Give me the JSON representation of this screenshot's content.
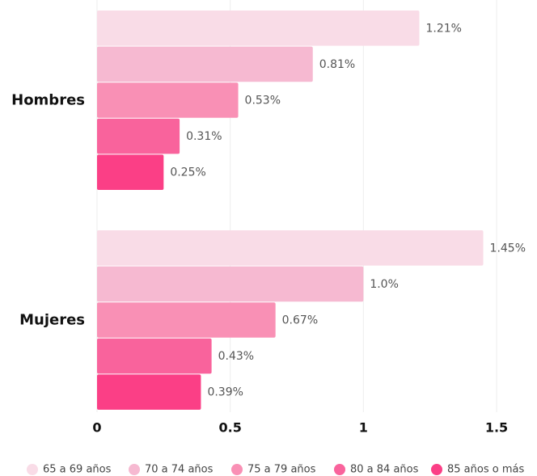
{
  "chart_data": {
    "type": "bar",
    "orientation": "horizontal",
    "categories": [
      "Hombres",
      "Mujeres"
    ],
    "series": [
      {
        "name": "65 a 69 años",
        "color": "#f9dce7",
        "values": [
          1.21,
          1.45
        ],
        "value_labels": [
          "1.21%",
          "1.45%"
        ]
      },
      {
        "name": "70 a 74 años",
        "color": "#f6b9d1",
        "values": [
          0.81,
          1.0
        ],
        "value_labels": [
          "0.81%",
          "1.0%"
        ]
      },
      {
        "name": "75 a 79 años",
        "color": "#f990b5",
        "values": [
          0.53,
          0.67
        ],
        "value_labels": [
          "0.53%",
          "0.67%"
        ]
      },
      {
        "name": "80 a 84 años",
        "color": "#f9639c",
        "values": [
          0.31,
          0.43
        ],
        "value_labels": [
          "0.31%",
          "0.43%"
        ]
      },
      {
        "name": "85 años o más",
        "color": "#fb3f86",
        "values": [
          0.25,
          0.39
        ],
        "value_labels": [
          "0.25%",
          "0.39%"
        ]
      }
    ],
    "xlim": [
      0,
      1.5
    ],
    "xticks": [
      0,
      0.5,
      1,
      1.5
    ],
    "grid": true,
    "legend": "bottom"
  }
}
